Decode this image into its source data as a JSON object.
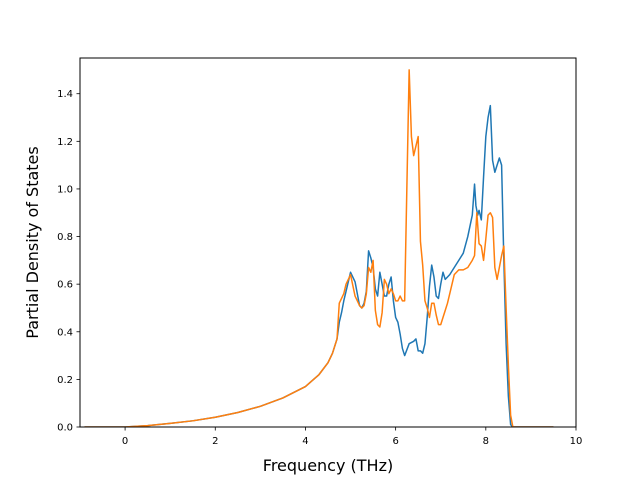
{
  "chart_data": {
    "type": "line",
    "title": "",
    "xlabel": "Frequency (THz)",
    "ylabel": "Partial Density of States",
    "xlim": [
      -1.0,
      10.0
    ],
    "ylim": [
      0.0,
      1.55
    ],
    "xticks": [
      0,
      2,
      4,
      6,
      8,
      10
    ],
    "yticks": [
      0.0,
      0.2,
      0.4,
      0.6,
      0.8,
      1.0,
      1.2,
      1.4
    ],
    "xtick_labels": [
      "0",
      "2",
      "4",
      "6",
      "8",
      "10"
    ],
    "ytick_labels": [
      "0.0",
      "0.2",
      "0.4",
      "0.6",
      "0.8",
      "1.0",
      "1.2",
      "1.4"
    ],
    "grid": false,
    "legend": "none",
    "series": [
      {
        "color": "#1f77b4",
        "x": [
          -0.9,
          0.0,
          0.5,
          1.0,
          1.5,
          2.0,
          2.5,
          3.0,
          3.5,
          4.0,
          4.3,
          4.5,
          4.6,
          4.7,
          4.75,
          4.8,
          4.85,
          4.9,
          5.0,
          5.1,
          5.2,
          5.25,
          5.3,
          5.35,
          5.4,
          5.45,
          5.5,
          5.55,
          5.6,
          5.65,
          5.7,
          5.75,
          5.8,
          5.85,
          5.9,
          5.95,
          6.0,
          6.05,
          6.1,
          6.15,
          6.2,
          6.3,
          6.4,
          6.45,
          6.5,
          6.55,
          6.6,
          6.65,
          6.7,
          6.75,
          6.8,
          6.85,
          6.9,
          6.95,
          7.0,
          7.05,
          7.1,
          7.15,
          7.2,
          7.3,
          7.4,
          7.5,
          7.6,
          7.7,
          7.75,
          7.78,
          7.82,
          7.85,
          7.9,
          7.95,
          8.0,
          8.05,
          8.1,
          8.15,
          8.2,
          8.25,
          8.3,
          8.35,
          8.4,
          8.45,
          8.5,
          8.55,
          8.6,
          8.65,
          8.7,
          9.0,
          9.5
        ],
        "y": [
          0.0,
          0.0,
          0.006,
          0.015,
          0.026,
          0.041,
          0.061,
          0.087,
          0.122,
          0.17,
          0.22,
          0.27,
          0.31,
          0.37,
          0.44,
          0.48,
          0.53,
          0.57,
          0.65,
          0.61,
          0.51,
          0.5,
          0.52,
          0.57,
          0.74,
          0.71,
          0.67,
          0.58,
          0.55,
          0.65,
          0.6,
          0.55,
          0.55,
          0.6,
          0.63,
          0.53,
          0.46,
          0.44,
          0.39,
          0.33,
          0.3,
          0.35,
          0.36,
          0.37,
          0.32,
          0.32,
          0.31,
          0.35,
          0.46,
          0.59,
          0.68,
          0.63,
          0.55,
          0.54,
          0.6,
          0.65,
          0.62,
          0.63,
          0.64,
          0.67,
          0.7,
          0.73,
          0.8,
          0.89,
          1.02,
          0.93,
          0.89,
          0.91,
          0.87,
          1.05,
          1.22,
          1.3,
          1.35,
          1.12,
          1.07,
          1.1,
          1.13,
          1.1,
          0.7,
          0.35,
          0.13,
          0.01,
          0.0,
          0.0,
          0.0,
          0.0,
          0.0
        ]
      },
      {
        "color": "#ff7f0e",
        "x": [
          -0.9,
          0.0,
          0.5,
          1.0,
          1.5,
          2.0,
          2.5,
          3.0,
          3.5,
          4.0,
          4.3,
          4.5,
          4.6,
          4.7,
          4.75,
          4.8,
          4.85,
          4.9,
          5.0,
          5.1,
          5.2,
          5.25,
          5.3,
          5.35,
          5.4,
          5.45,
          5.5,
          5.55,
          5.6,
          5.65,
          5.7,
          5.75,
          5.8,
          5.85,
          5.9,
          5.95,
          6.0,
          6.05,
          6.1,
          6.15,
          6.2,
          6.3,
          6.35,
          6.4,
          6.45,
          6.5,
          6.55,
          6.6,
          6.65,
          6.7,
          6.75,
          6.8,
          6.85,
          6.9,
          6.95,
          7.0,
          7.05,
          7.1,
          7.15,
          7.2,
          7.3,
          7.4,
          7.5,
          7.6,
          7.7,
          7.75,
          7.8,
          7.85,
          7.9,
          7.95,
          8.0,
          8.05,
          8.1,
          8.15,
          8.2,
          8.25,
          8.3,
          8.35,
          8.4,
          8.45,
          8.5,
          8.55,
          8.6,
          8.65,
          8.7,
          9.0,
          9.5
        ],
        "y": [
          0.0,
          0.0,
          0.006,
          0.015,
          0.026,
          0.041,
          0.061,
          0.087,
          0.122,
          0.17,
          0.22,
          0.27,
          0.31,
          0.37,
          0.52,
          0.54,
          0.56,
          0.6,
          0.64,
          0.55,
          0.51,
          0.5,
          0.51,
          0.56,
          0.67,
          0.65,
          0.7,
          0.49,
          0.43,
          0.42,
          0.48,
          0.62,
          0.6,
          0.56,
          0.58,
          0.56,
          0.53,
          0.53,
          0.55,
          0.53,
          0.53,
          1.5,
          1.22,
          1.14,
          1.18,
          1.22,
          0.78,
          0.68,
          0.53,
          0.5,
          0.46,
          0.52,
          0.52,
          0.47,
          0.43,
          0.43,
          0.46,
          0.49,
          0.52,
          0.56,
          0.64,
          0.66,
          0.66,
          0.67,
          0.7,
          0.72,
          0.9,
          0.77,
          0.76,
          0.7,
          0.79,
          0.89,
          0.9,
          0.88,
          0.67,
          0.62,
          0.67,
          0.72,
          0.76,
          0.5,
          0.26,
          0.05,
          0.0,
          0.0,
          0.0,
          0.0,
          0.0
        ]
      }
    ]
  }
}
